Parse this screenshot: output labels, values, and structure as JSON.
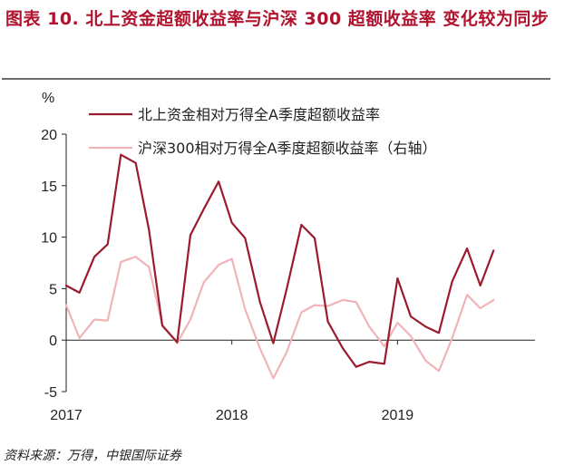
{
  "title": "图表 10. 北上资金超额收益率与沪深 300 超额收益率 变化较为同步",
  "source": "资料来源：万得，中银国际证券",
  "chart_data": {
    "type": "line",
    "ylabel": "%",
    "ylim": [
      -5,
      20
    ],
    "yticks": [
      -5,
      0,
      5,
      10,
      15,
      20
    ],
    "xlim": [
      2017.0,
      2019.83
    ],
    "xticks": [
      {
        "value": 2017.0,
        "label": "2017"
      },
      {
        "value": 2018.0,
        "label": "2018"
      },
      {
        "value": 2019.0,
        "label": "2019"
      }
    ],
    "grid": false,
    "legend_position": "top",
    "series": [
      {
        "name": "北上资金相对万得全A季度超额收益率",
        "color": "#9b1b2e",
        "x": [
          2017.0,
          2017.08,
          2017.17,
          2017.25,
          2017.33,
          2017.42,
          2017.5,
          2017.58,
          2017.67,
          2017.75,
          2017.83,
          2017.92,
          2018.0,
          2018.08,
          2018.17,
          2018.25,
          2018.33,
          2018.42,
          2018.5,
          2018.58,
          2018.67,
          2018.75,
          2018.83,
          2018.92,
          2019.0,
          2019.08,
          2019.17,
          2019.25,
          2019.33,
          2019.42,
          2019.5,
          2019.58,
          2019.67
        ],
        "y": [
          5.3,
          4.6,
          8.1,
          9.3,
          18.0,
          17.2,
          10.7,
          1.4,
          -0.2,
          10.2,
          12.7,
          15.4,
          11.4,
          9.9,
          3.7,
          -0.3,
          4.9,
          11.2,
          9.9,
          1.8,
          -0.8,
          -2.6,
          -2.1,
          -2.3,
          6.0,
          2.3,
          1.3,
          0.7,
          5.7,
          8.9,
          5.3,
          8.7,
          null
        ]
      },
      {
        "name": "沪深300相对万得全A季度超额收益率（右轴）",
        "color": "#f0b4b8",
        "x": [
          2017.0,
          2017.08,
          2017.17,
          2017.25,
          2017.33,
          2017.42,
          2017.5,
          2017.58,
          2017.67,
          2017.75,
          2017.83,
          2017.92,
          2018.0,
          2018.08,
          2018.17,
          2018.25,
          2018.33,
          2018.42,
          2018.5,
          2018.58,
          2018.67,
          2018.75,
          2018.83,
          2018.92,
          2019.0,
          2019.08,
          2019.17,
          2019.25,
          2019.33,
          2019.42,
          2019.5,
          2019.58,
          2019.67
        ],
        "y": [
          3.4,
          0.2,
          2.0,
          1.9,
          7.6,
          8.1,
          7.1,
          1.5,
          -0.3,
          2.0,
          5.6,
          7.3,
          7.9,
          3.0,
          -0.8,
          -3.7,
          -1.2,
          2.7,
          3.4,
          3.3,
          3.9,
          3.7,
          1.3,
          -0.6,
          1.7,
          0.4,
          -2.0,
          -3.0,
          0.2,
          4.4,
          3.1,
          3.9,
          null
        ]
      }
    ]
  }
}
